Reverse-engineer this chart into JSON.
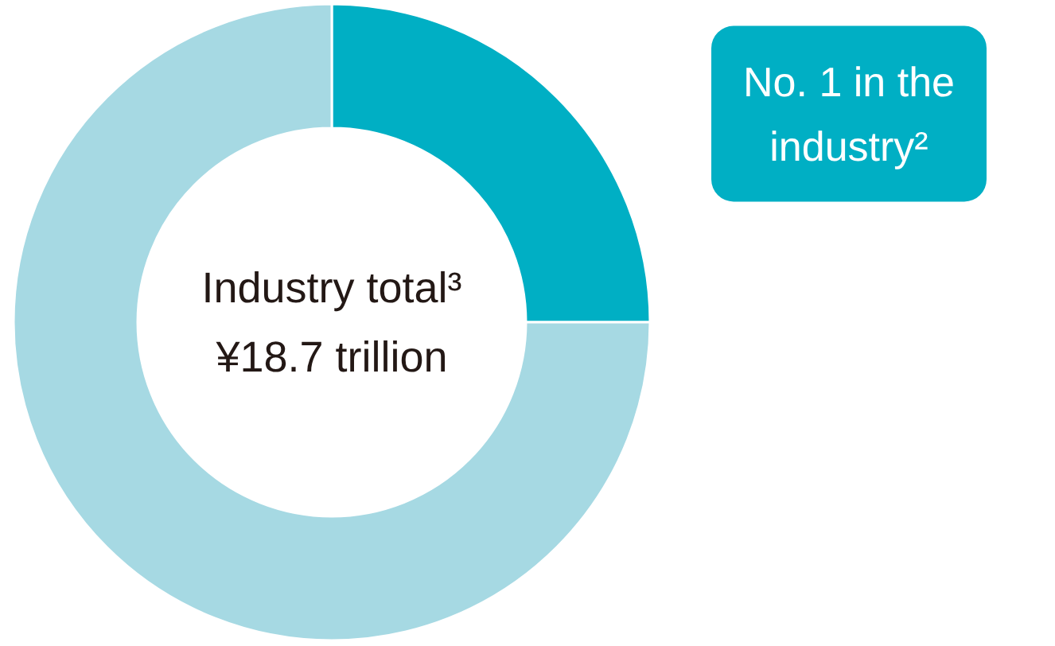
{
  "chart_data": {
    "type": "donut",
    "categories": [
      null,
      null
    ],
    "values": [
      25,
      75
    ],
    "colors": [
      "#00afc4",
      "#a6d9e3"
    ],
    "annotations": [
      "Industry total³\n¥18.7 trillion",
      "No. 1 in the\nindustry²"
    ]
  }
}
